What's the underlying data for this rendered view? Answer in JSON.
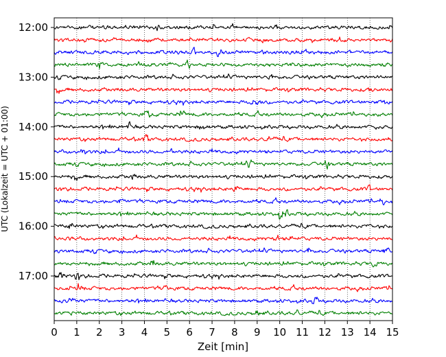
{
  "chart_data": {
    "type": "line",
    "title": "",
    "xlabel": "Zeit  [min]",
    "ylabel": "UTC (Lokalzeit = UTC + 01:00)",
    "xlim": [
      0,
      15
    ],
    "x_ticks": [
      "0",
      "1",
      "2",
      "3",
      "4",
      "5",
      "6",
      "7",
      "8",
      "9",
      "10",
      "11",
      "12",
      "13",
      "14",
      "15"
    ],
    "y_tick_labels": [
      "12:00",
      "13:00",
      "14:00",
      "15:00",
      "16:00",
      "17:00"
    ],
    "grid": "vertical dotted at each minute",
    "trace_interval_min": 15,
    "traces_per_hour": 4,
    "trace_count": 24,
    "trace_start": "12:00",
    "trace_colors": [
      "#000000",
      "#ff0000",
      "#0000ff",
      "#007f00"
    ]
  }
}
